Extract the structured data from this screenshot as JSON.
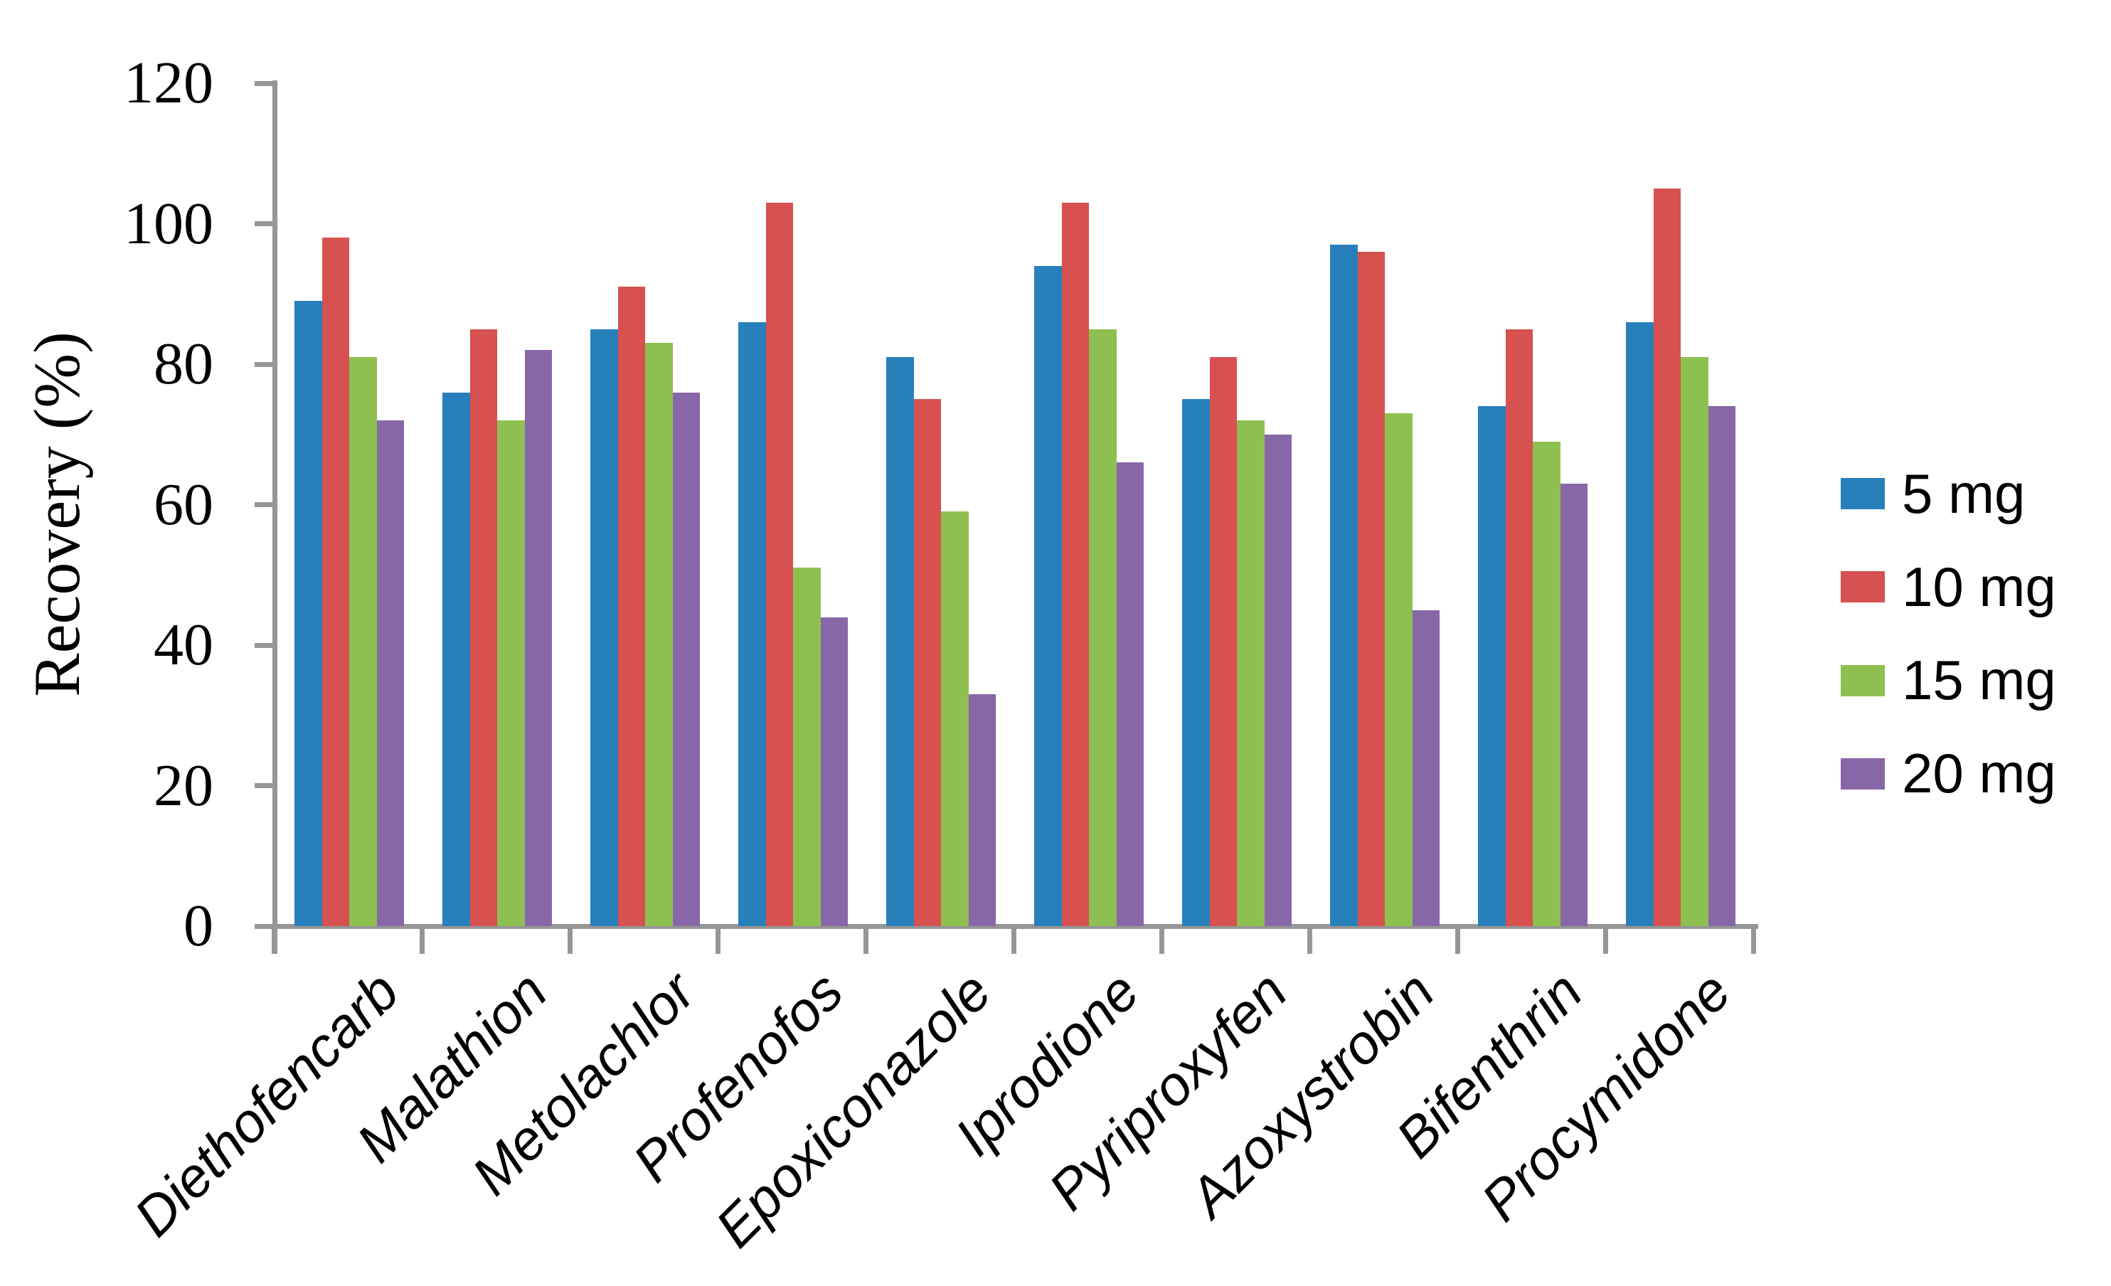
{
  "figure": {
    "ylabel": "Recovery (%)"
  },
  "chart_data": {
    "type": "bar",
    "title": "",
    "xlabel": "",
    "ylabel": "Recovery (%)",
    "ylim": [
      0,
      120
    ],
    "y_ticks": [
      0,
      20,
      40,
      60,
      80,
      100,
      120
    ],
    "grid": false,
    "legend_position": "right",
    "axis_color": "#969696",
    "categories": [
      "Diethofencarb",
      "Malathion",
      "Metolachlor",
      "Profenofos",
      "Epoxiconazole",
      "Iprodione",
      "Pyriproxyfen",
      "Azoxystrobin",
      "Bifenthrin",
      "Procymidone"
    ],
    "series": [
      {
        "name": "5 mg",
        "color": "#2880BB",
        "values": [
          89,
          76,
          85,
          86,
          81,
          94,
          75,
          97,
          74,
          86
        ]
      },
      {
        "name": "10 mg",
        "color": "#D6514F",
        "values": [
          98,
          85,
          91,
          103,
          75,
          103,
          81,
          96,
          85,
          105
        ]
      },
      {
        "name": "15 mg",
        "color": "#8EC051",
        "values": [
          81,
          72,
          83,
          51,
          59,
          85,
          72,
          73,
          69,
          81
        ]
      },
      {
        "name": "20 mg",
        "color": "#8767A8",
        "values": [
          72,
          82,
          76,
          44,
          33,
          66,
          70,
          45,
          63,
          74
        ]
      }
    ]
  }
}
